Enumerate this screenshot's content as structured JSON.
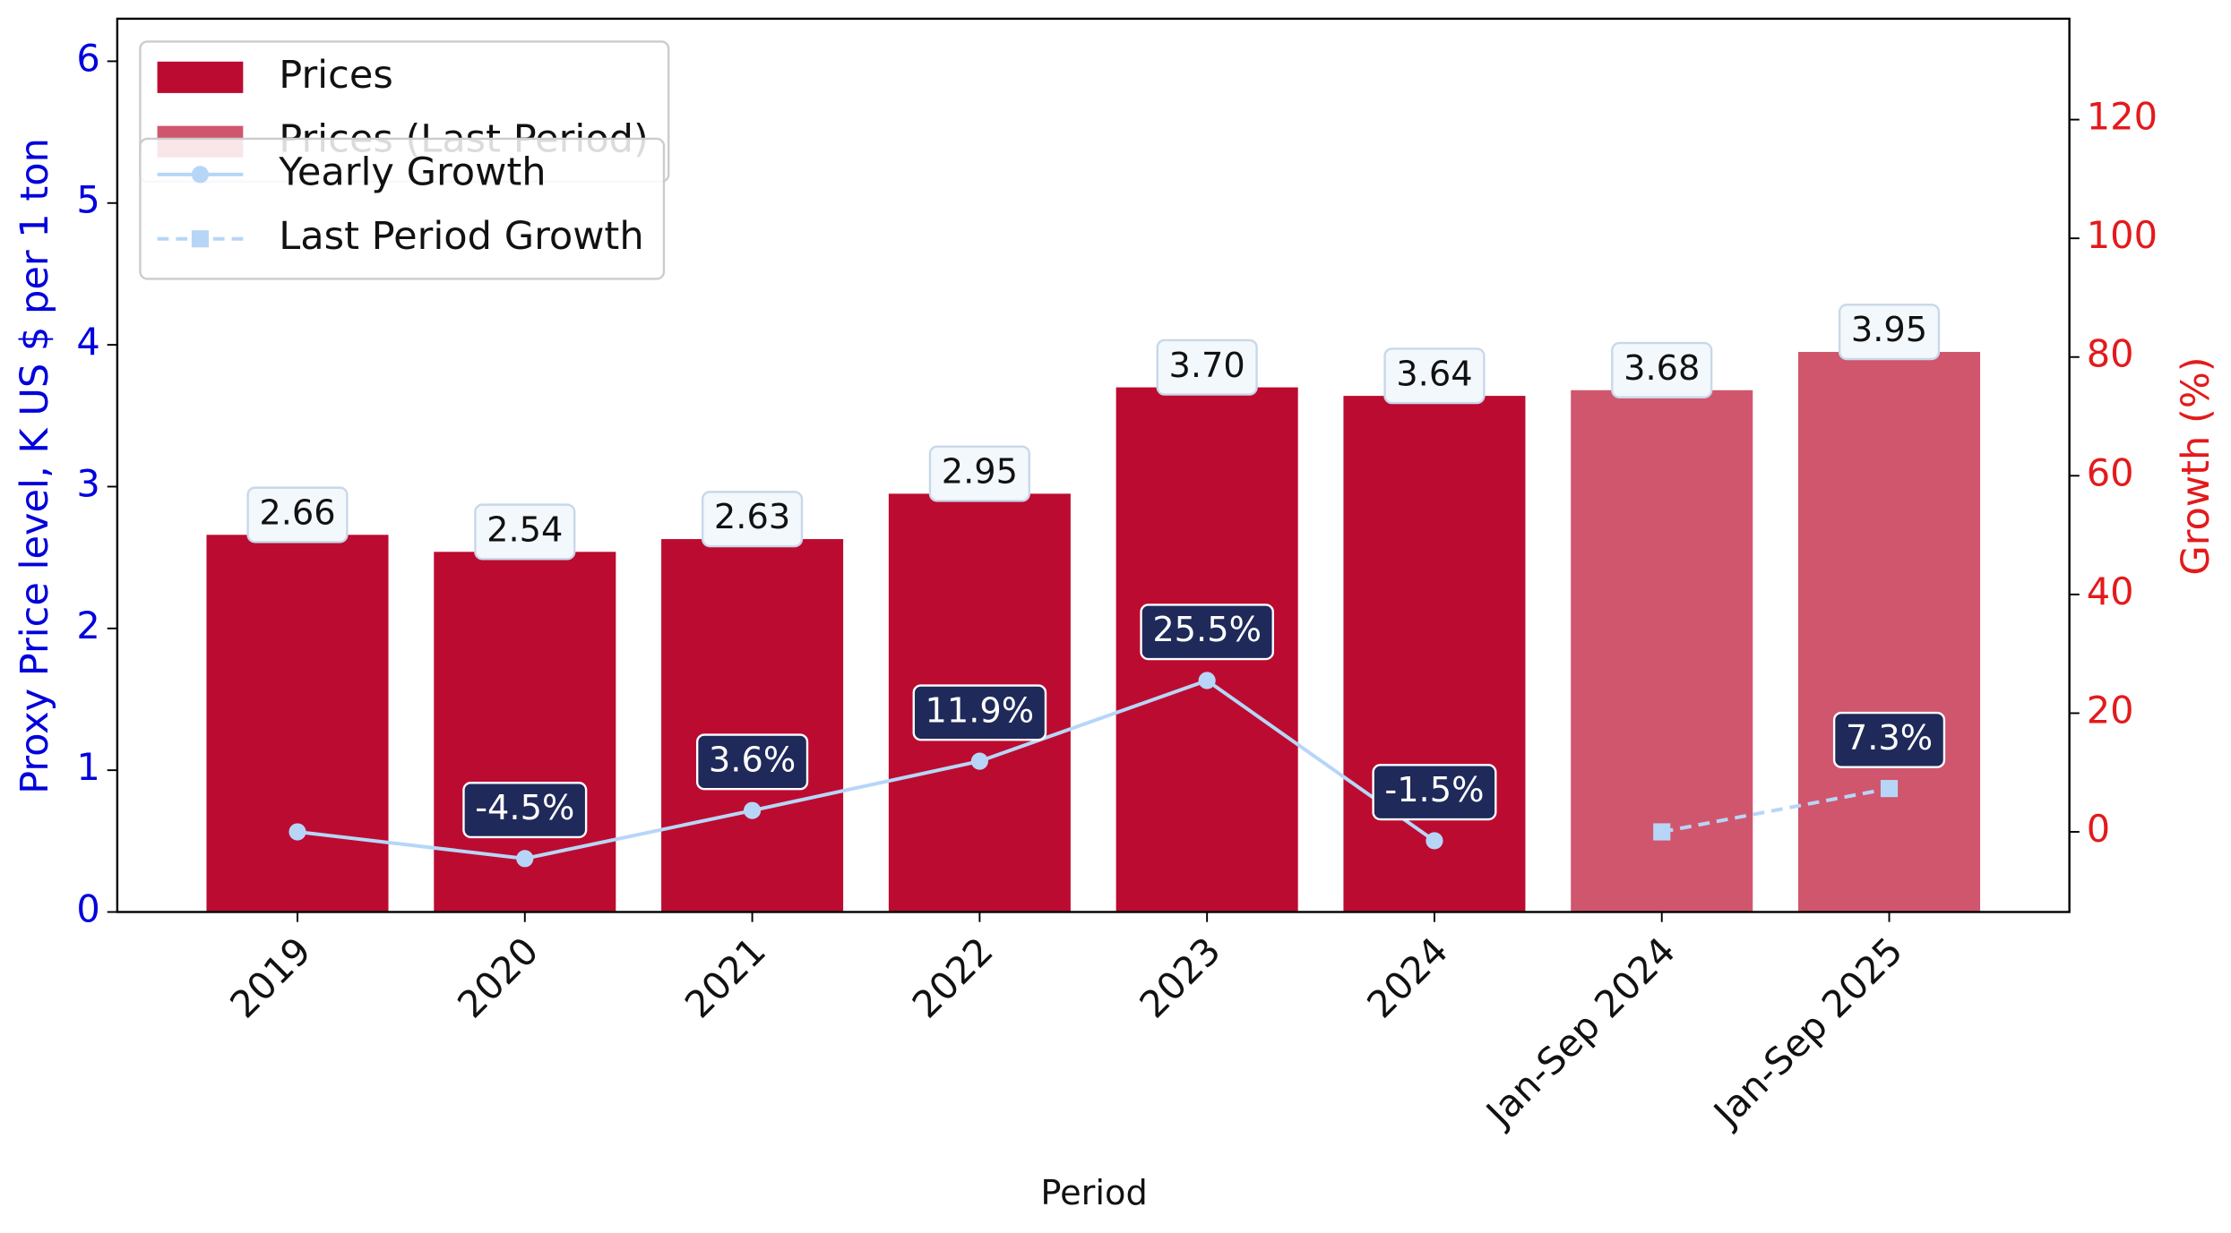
{
  "chart_data": {
    "type": "bar",
    "x_label": "Period",
    "y_label": "Proxy Price level, K US $ per 1 ton",
    "y2_label": "Growth (%)",
    "categories": [
      "2019",
      "2020",
      "2021",
      "2022",
      "2023",
      "2024",
      "Jan-Sep 2024",
      "Jan-Sep 2025"
    ],
    "series": [
      {
        "name": "Prices",
        "type": "bar",
        "color": "#bc0b31",
        "values": [
          2.66,
          2.54,
          2.63,
          2.95,
          3.7,
          3.64,
          null,
          null
        ],
        "value_labels": [
          "2.66",
          "2.54",
          "2.63",
          "2.95",
          "3.70",
          "3.64",
          null,
          null
        ]
      },
      {
        "name": "Prices (Last Period)",
        "type": "bar",
        "color": "#d0566d",
        "values": [
          null,
          null,
          null,
          null,
          null,
          null,
          3.68,
          3.95
        ],
        "value_labels": [
          null,
          null,
          null,
          null,
          null,
          null,
          "3.68",
          "3.95"
        ]
      },
      {
        "name": "Yearly Growth",
        "type": "line",
        "axis": "y2",
        "color": "#b7d6f7",
        "dashed": false,
        "marker": "circle",
        "values": [
          0,
          -4.5,
          3.6,
          11.9,
          25.5,
          -1.5,
          null,
          null
        ],
        "value_labels": [
          null,
          "-4.5%",
          "3.6%",
          "11.9%",
          "25.5%",
          "-1.5%",
          null,
          null
        ]
      },
      {
        "name": "Last Period Growth",
        "type": "line",
        "axis": "y2",
        "color": "#b7d6f7",
        "dashed": true,
        "marker": "square",
        "values": [
          null,
          null,
          null,
          null,
          null,
          null,
          0,
          7.3
        ],
        "value_labels": [
          null,
          null,
          null,
          null,
          null,
          null,
          null,
          "7.3%"
        ]
      }
    ],
    "ylim": [
      0,
      6.3
    ],
    "yticks": [
      0,
      1,
      2,
      3,
      4,
      5,
      6
    ],
    "y2lim": [
      -13.5,
      137
    ],
    "y2ticks": [
      0,
      20,
      40,
      60,
      80,
      100,
      120
    ],
    "y_color": "#0000dd",
    "y2_color": "#e31a1c",
    "legend": "upper left",
    "grid": false
  }
}
